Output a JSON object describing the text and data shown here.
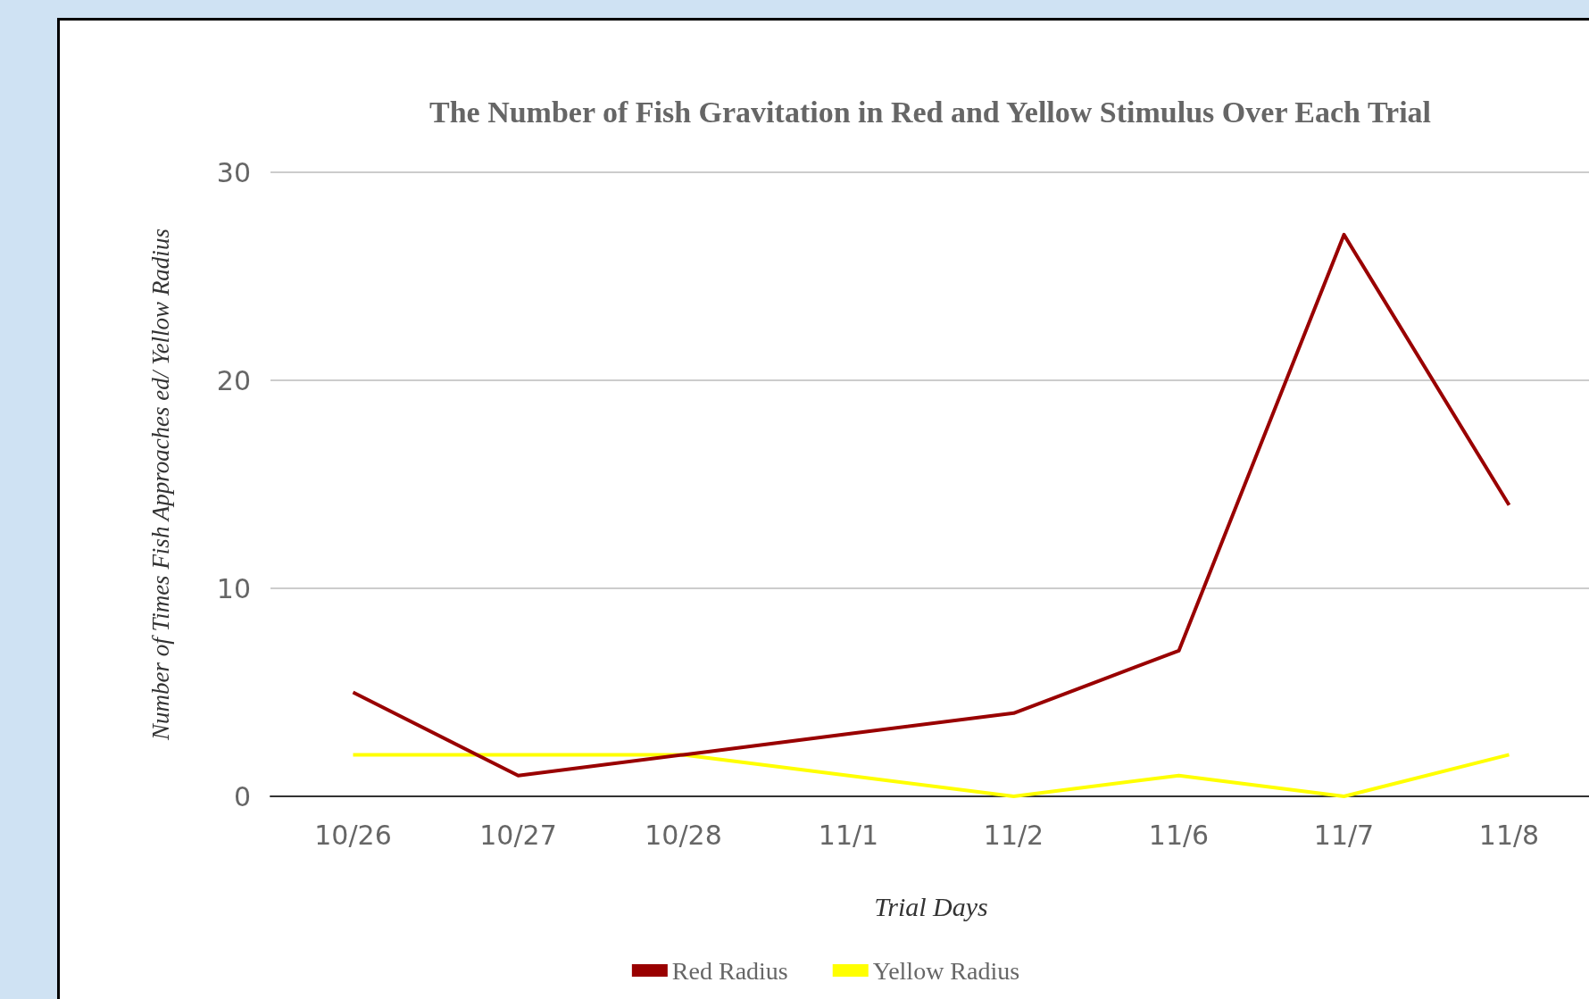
{
  "chart_data": {
    "type": "line",
    "title": "The Number of Fish Gravitation in Red and Yellow Stimulus Over Each Trial",
    "xlabel": "Trial Days",
    "ylabel": "Number of Times Fish Approaches ed/ Yellow Radius",
    "categories": [
      "10/26",
      "10/27",
      "10/28",
      "11/1",
      "11/2",
      "11/6",
      "11/7",
      "11/8"
    ],
    "series": [
      {
        "name": "Red Radius",
        "color": "#990000",
        "values": [
          5,
          1,
          2,
          3,
          4,
          7,
          27,
          14
        ]
      },
      {
        "name": "Yellow Radius",
        "color": "#ffff00",
        "values": [
          2,
          2,
          2,
          1,
          0,
          1,
          0,
          2
        ]
      }
    ],
    "ylim": [
      0,
      30
    ],
    "yticks": [
      0,
      10,
      20,
      30
    ],
    "grid": "y",
    "legend": "bottom",
    "marker": "none"
  }
}
